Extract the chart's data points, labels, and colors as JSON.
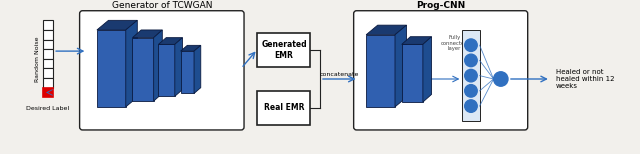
{
  "fig_width": 6.4,
  "fig_height": 1.54,
  "dpi": 100,
  "bg_color": "#f2f0ec",
  "title_generator": "Generator of TCWGAN",
  "title_progcnn": "Prog-CNN",
  "label_random_noise": "Random Noise",
  "label_desired_label": "Desired Label",
  "label_generated_emr": "Generated\nEMR",
  "label_real_emr": "Real EMR",
  "label_concatenate": "concatenate",
  "label_fully_connected": "Fully\nconnected\nlayer",
  "label_output": "Healed or not\nhealed within 12\nweeks",
  "c_face": "#3060b0",
  "c_top": "#1a3a70",
  "c_side": "#1e4d90",
  "arrow_color": "#3070c0",
  "box_edge_color": "#222222",
  "red_color": "#dd0000",
  "white": "#ffffff"
}
